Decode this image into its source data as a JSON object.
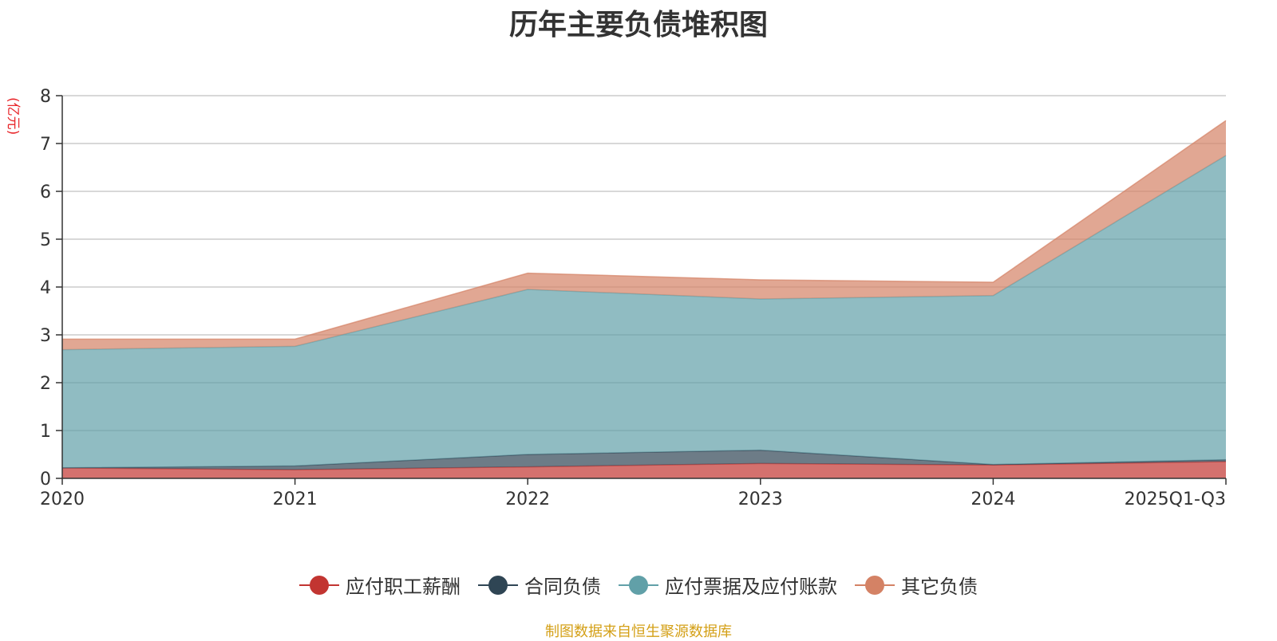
{
  "chart_data": {
    "type": "area",
    "stacked": true,
    "title": "历年主要负债堆积图",
    "unit_label": "(亿元)",
    "categories": [
      "2020",
      "2021",
      "2022",
      "2023",
      "2024",
      "2025Q1-Q3"
    ],
    "ylim": [
      0,
      8
    ],
    "yticks": [
      0,
      1,
      2,
      3,
      4,
      5,
      6,
      7,
      8
    ],
    "grid": true,
    "legend_position": "bottom-center",
    "series": [
      {
        "name": "应付职工薪酬",
        "color": "#c23531",
        "values": [
          0.22,
          0.18,
          0.24,
          0.31,
          0.28,
          0.35
        ]
      },
      {
        "name": "合同负债",
        "color": "#2f4554",
        "values": [
          0.0,
          0.08,
          0.26,
          0.28,
          0.01,
          0.04
        ]
      },
      {
        "name": "应付票据及应付账款",
        "color": "#61a0a8",
        "values": [
          2.47,
          2.5,
          3.45,
          3.16,
          3.53,
          6.36
        ]
      },
      {
        "name": "其它负债",
        "color": "#d48265",
        "values": [
          0.22,
          0.15,
          0.34,
          0.4,
          0.28,
          0.73
        ]
      }
    ]
  },
  "source_note": "制图数据来自恒生聚源数据库"
}
